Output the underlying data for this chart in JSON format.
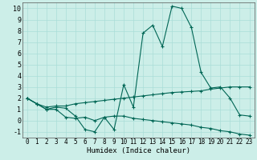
{
  "xlabel": "Humidex (Indice chaleur)",
  "bg_color": "#cceee8",
  "grid_color": "#aaddd8",
  "line_color": "#006655",
  "xlim": [
    -0.5,
    23.5
  ],
  "ylim": [
    -1.5,
    10.5
  ],
  "xticks": [
    0,
    1,
    2,
    3,
    4,
    5,
    6,
    7,
    8,
    9,
    10,
    11,
    12,
    13,
    14,
    15,
    16,
    17,
    18,
    19,
    20,
    21,
    22,
    23
  ],
  "yticks": [
    -1,
    0,
    1,
    2,
    3,
    4,
    5,
    6,
    7,
    8,
    9,
    10
  ],
  "line1_y": [
    2.0,
    1.5,
    1.0,
    1.2,
    1.1,
    0.4,
    -0.8,
    -1.0,
    0.3,
    -0.8,
    3.2,
    1.2,
    7.8,
    8.5,
    6.6,
    10.2,
    10.0,
    8.3,
    4.3,
    2.9,
    3.0,
    2.0,
    0.5,
    0.4
  ],
  "line2_y": [
    2.0,
    1.5,
    1.2,
    1.3,
    1.3,
    1.5,
    1.6,
    1.7,
    1.8,
    1.9,
    2.0,
    2.1,
    2.2,
    2.3,
    2.4,
    2.5,
    2.55,
    2.6,
    2.65,
    2.8,
    2.9,
    3.0,
    3.0,
    3.0
  ],
  "line3_y": [
    2.0,
    1.5,
    1.0,
    1.0,
    0.3,
    0.2,
    0.3,
    0.0,
    0.3,
    0.4,
    0.4,
    0.2,
    0.1,
    0.0,
    -0.1,
    -0.2,
    -0.3,
    -0.4,
    -0.6,
    -0.7,
    -0.9,
    -1.0,
    -1.2,
    -1.3
  ],
  "tick_fontsize": 5.5,
  "xlabel_fontsize": 6.5
}
